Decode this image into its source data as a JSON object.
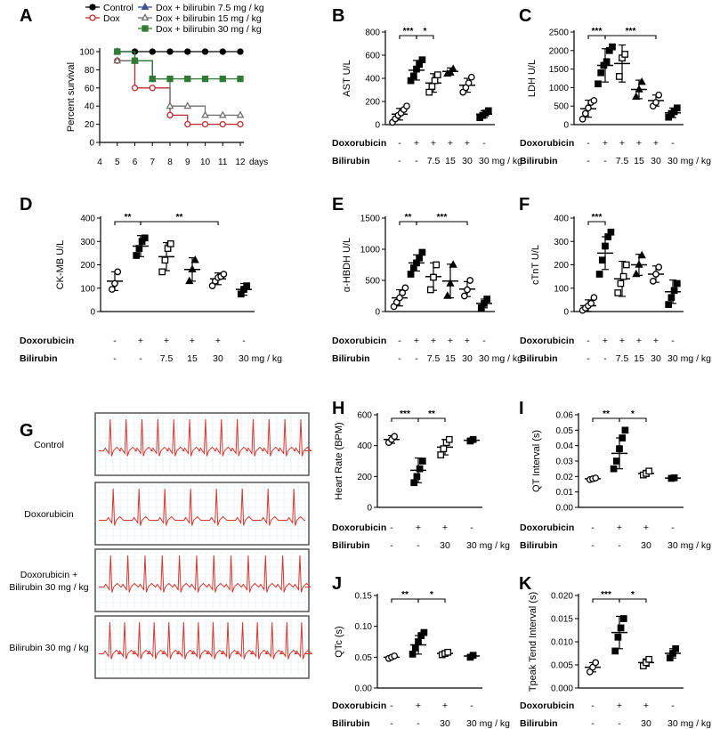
{
  "panels": {
    "A": {
      "label": "A",
      "type": "line",
      "ylabel": "Percent survival",
      "xunit": "days",
      "xlim": [
        4,
        12
      ],
      "ylim": [
        0,
        100
      ],
      "xticks": [
        4,
        5,
        6,
        7,
        8,
        9,
        10,
        11,
        12
      ],
      "yticks": [
        0,
        20,
        40,
        60,
        80,
        100
      ],
      "series": [
        {
          "name": "Control",
          "color": "#000000",
          "marker": "circle",
          "fill": true,
          "x": [
            5,
            6,
            7,
            8,
            9,
            10,
            11,
            12
          ],
          "y": [
            100,
            100,
            100,
            100,
            100,
            100,
            100,
            100
          ]
        },
        {
          "name": "Dox",
          "color": "#c0282d",
          "marker": "circle",
          "fill": false,
          "x": [
            5,
            6,
            7,
            8,
            9,
            10,
            11,
            12
          ],
          "y": [
            90,
            60,
            60,
            30,
            20,
            20,
            20,
            20
          ]
        },
        {
          "name": "Dox + bilirubin 7.5 mg / kg",
          "color": "#3d4f9a",
          "marker": "triangle",
          "fill": true,
          "x": [
            5,
            6,
            7
          ],
          "y": [
            100,
            90,
            70
          ]
        },
        {
          "name": "Dox + bilirubin 15 mg / kg",
          "color": "#707070",
          "marker": "triangle",
          "fill": false,
          "x": [
            5,
            6,
            7,
            8,
            9,
            10,
            11,
            12
          ],
          "y": [
            90,
            90,
            70,
            40,
            40,
            30,
            30,
            30
          ]
        },
        {
          "name": "Dox + bilirubin 30 mg / kg",
          "color": "#2f7a34",
          "marker": "square",
          "fill": true,
          "x": [
            5,
            6,
            7,
            8,
            9,
            10,
            11,
            12
          ],
          "y": [
            100,
            90,
            70,
            70,
            70,
            70,
            70,
            70
          ]
        }
      ]
    },
    "B": {
      "label": "B",
      "ylabel": "AST U/L",
      "ylim": [
        0,
        800
      ],
      "yticks": [
        0,
        200,
        400,
        600,
        800
      ],
      "groups": [
        {
          "mean": 90,
          "sd": 50,
          "marker": "circle-open",
          "points": [
            20,
            50,
            80,
            100,
            130,
            160
          ]
        },
        {
          "mean": 470,
          "sd": 85,
          "marker": "square-filled",
          "points": [
            380,
            420,
            480,
            520,
            560
          ]
        },
        {
          "mean": 360,
          "sd": 80,
          "marker": "square-open",
          "points": [
            280,
            330,
            380,
            430
          ]
        },
        {
          "mean": 460,
          "sd": 30,
          "marker": "triangle-filled",
          "points": [
            440,
            450,
            480
          ]
        },
        {
          "mean": 340,
          "sd": 60,
          "marker": "circle-open",
          "points": [
            280,
            320,
            360,
            410
          ]
        },
        {
          "mean": 90,
          "sd": 30,
          "marker": "square-filled",
          "points": [
            60,
            80,
            100,
            120
          ]
        }
      ],
      "brackets": [
        {
          "from": 0,
          "to": 1,
          "label": "***"
        },
        {
          "from": 1,
          "to": 2,
          "label": "*"
        }
      ]
    },
    "C": {
      "label": "C",
      "ylabel": "LDH U/L",
      "ylim": [
        0,
        2500
      ],
      "yticks": [
        0,
        500,
        1000,
        1500,
        2000,
        2500
      ],
      "groups": [
        {
          "mean": 430,
          "sd": 230,
          "marker": "circle-open",
          "points": [
            150,
            300,
            450,
            600,
            650
          ]
        },
        {
          "mean": 1600,
          "sd": 450,
          "marker": "square-filled",
          "points": [
            1100,
            1400,
            1600,
            1700,
            2000,
            2100
          ]
        },
        {
          "mean": 1650,
          "sd": 500,
          "marker": "square-open",
          "points": [
            1300,
            1800,
            1900
          ]
        },
        {
          "mean": 950,
          "sd": 250,
          "marker": "triangle-filled",
          "points": [
            750,
            950,
            1150
          ]
        },
        {
          "mean": 650,
          "sd": 150,
          "marker": "circle-open",
          "points": [
            500,
            600,
            800
          ]
        },
        {
          "mean": 320,
          "sd": 130,
          "marker": "square-filled",
          "points": [
            200,
            300,
            350,
            450
          ]
        }
      ],
      "brackets": [
        {
          "from": 0,
          "to": 1,
          "label": "***"
        },
        {
          "from": 1,
          "to": 4,
          "label": "***"
        }
      ]
    },
    "D": {
      "label": "D",
      "ylabel": "CK-MB U/L",
      "ylim": [
        0,
        400
      ],
      "yticks": [
        0,
        100,
        200,
        300,
        400
      ],
      "groups": [
        {
          "mean": 130,
          "sd": 40,
          "marker": "circle-open",
          "points": [
            95,
            120,
            170
          ]
        },
        {
          "mean": 280,
          "sd": 45,
          "marker": "square-filled",
          "points": [
            240,
            270,
            300,
            315
          ]
        },
        {
          "mean": 235,
          "sd": 60,
          "marker": "square-open",
          "points": [
            170,
            220,
            270,
            290
          ]
        },
        {
          "mean": 180,
          "sd": 50,
          "marker": "triangle-filled",
          "points": [
            130,
            180,
            220
          ]
        },
        {
          "mean": 140,
          "sd": 25,
          "marker": "circle-open",
          "points": [
            110,
            130,
            145,
            150,
            160
          ]
        },
        {
          "mean": 95,
          "sd": 25,
          "marker": "square-filled",
          "points": [
            75,
            95,
            110
          ]
        }
      ],
      "brackets": [
        {
          "from": 0,
          "to": 1,
          "label": "**"
        },
        {
          "from": 1,
          "to": 4,
          "label": "**"
        }
      ]
    },
    "E": {
      "label": "E",
      "ylabel": "α-HBDH U/L",
      "ylim": [
        0,
        1500
      ],
      "yticks": [
        0,
        500,
        1000,
        1500
      ],
      "groups": [
        {
          "mean": 220,
          "sd": 130,
          "marker": "circle-open",
          "points": [
            80,
            150,
            220,
            300,
            380
          ]
        },
        {
          "mean": 780,
          "sd": 130,
          "marker": "square-filled",
          "points": [
            600,
            700,
            780,
            860,
            950
          ]
        },
        {
          "mean": 560,
          "sd": 220,
          "marker": "square-open",
          "points": [
            350,
            550,
            750
          ]
        },
        {
          "mean": 490,
          "sd": 270,
          "marker": "triangle-filled",
          "points": [
            250,
            450,
            750
          ]
        },
        {
          "mean": 360,
          "sd": 120,
          "marker": "circle-open",
          "points": [
            250,
            350,
            500
          ]
        },
        {
          "mean": 130,
          "sd": 70,
          "marker": "square-filled",
          "points": [
            60,
            130,
            200
          ]
        }
      ],
      "brackets": [
        {
          "from": 0,
          "to": 1,
          "label": "**"
        },
        {
          "from": 1,
          "to": 4,
          "label": "***"
        }
      ]
    },
    "F": {
      "label": "F",
      "ylabel": "cTnT U/L",
      "ylim": [
        0,
        400
      ],
      "yticks": [
        0,
        100,
        200,
        300,
        400
      ],
      "groups": [
        {
          "mean": 25,
          "sd": 25,
          "marker": "circle-open",
          "points": [
            5,
            15,
            25,
            35,
            60
          ]
        },
        {
          "mean": 250,
          "sd": 70,
          "marker": "square-filled",
          "points": [
            160,
            220,
            280,
            320,
            340
          ]
        },
        {
          "mean": 140,
          "sd": 75,
          "marker": "square-open",
          "points": [
            80,
            120,
            150,
            200
          ]
        },
        {
          "mean": 200,
          "sd": 45,
          "marker": "triangle-filled",
          "points": [
            160,
            200,
            240
          ]
        },
        {
          "mean": 160,
          "sd": 35,
          "marker": "circle-open",
          "points": [
            130,
            160,
            190
          ]
        },
        {
          "mean": 85,
          "sd": 50,
          "marker": "square-filled",
          "points": [
            30,
            60,
            90,
            120
          ]
        }
      ],
      "brackets": [
        {
          "from": 0,
          "to": 1,
          "label": "***"
        }
      ]
    },
    "H": {
      "label": "H",
      "ylabel": "Heart Rate (BPM)",
      "ylim": [
        0,
        600
      ],
      "yticks": [
        0,
        200,
        400,
        600
      ],
      "groups": [
        {
          "mean": 440,
          "sd": 25,
          "marker": "circle-open",
          "points": [
            420,
            440,
            460
          ]
        },
        {
          "mean": 240,
          "sd": 80,
          "marker": "square-filled",
          "points": [
            160,
            200,
            250,
            300
          ]
        },
        {
          "mean": 390,
          "sd": 50,
          "marker": "square-open",
          "points": [
            340,
            380,
            420,
            440
          ]
        },
        {
          "mean": 435,
          "sd": 10,
          "marker": "square-filled",
          "points": [
            430,
            440
          ]
        }
      ],
      "brackets": [
        {
          "from": 0,
          "to": 1,
          "label": "***"
        },
        {
          "from": 1,
          "to": 2,
          "label": "**"
        }
      ]
    },
    "I": {
      "label": "I",
      "ylabel": "QT Interval (s)",
      "ylim": [
        0,
        0.06
      ],
      "yticks": [
        "0.00",
        "0.01",
        "0.02",
        "0.03",
        "0.04",
        "0.05",
        "0.06"
      ],
      "groups": [
        {
          "mean": 0.0185,
          "sd": 0.0007,
          "marker": "circle-open",
          "points": [
            0.018,
            0.0185,
            0.019
          ]
        },
        {
          "mean": 0.035,
          "sd": 0.01,
          "marker": "square-filled",
          "points": [
            0.025,
            0.03,
            0.038,
            0.045,
            0.05
          ]
        },
        {
          "mean": 0.022,
          "sd": 0.002,
          "marker": "square-open",
          "points": [
            0.021,
            0.022,
            0.0235
          ]
        },
        {
          "mean": 0.019,
          "sd": 0.0005,
          "marker": "square-filled",
          "points": [
            0.0188,
            0.0192
          ]
        }
      ],
      "brackets": [
        {
          "from": 0,
          "to": 1,
          "label": "**"
        },
        {
          "from": 1,
          "to": 2,
          "label": "*"
        }
      ]
    },
    "J": {
      "label": "J",
      "ylabel": "QTc (s)",
      "ylim": [
        0,
        0.15
      ],
      "yticks": [
        "0.00",
        "0.05",
        "0.10",
        "0.15"
      ],
      "groups": [
        {
          "mean": 0.05,
          "sd": 0.002,
          "marker": "circle-open",
          "points": [
            0.048,
            0.05,
            0.052
          ]
        },
        {
          "mean": 0.07,
          "sd": 0.015,
          "marker": "square-filled",
          "points": [
            0.055,
            0.065,
            0.075,
            0.085,
            0.09
          ]
        },
        {
          "mean": 0.056,
          "sd": 0.002,
          "marker": "square-open",
          "points": [
            0.054,
            0.056,
            0.058
          ]
        },
        {
          "mean": 0.052,
          "sd": 0.002,
          "marker": "square-filled",
          "points": [
            0.05,
            0.053
          ]
        }
      ],
      "brackets": [
        {
          "from": 0,
          "to": 1,
          "label": "**"
        },
        {
          "from": 1,
          "to": 2,
          "label": "*"
        }
      ]
    },
    "K": {
      "label": "K",
      "ylabel": "Tpeak Tend Interval (s)",
      "ylim": [
        0,
        0.02
      ],
      "yticks": [
        "0.000",
        "0.005",
        "0.010",
        "0.015",
        "0.020"
      ],
      "groups": [
        {
          "mean": 0.0045,
          "sd": 0.001,
          "marker": "circle-open",
          "points": [
            0.0035,
            0.0045,
            0.0055
          ]
        },
        {
          "mean": 0.012,
          "sd": 0.0035,
          "marker": "square-filled",
          "points": [
            0.008,
            0.011,
            0.013,
            0.015
          ]
        },
        {
          "mean": 0.0055,
          "sd": 0.0008,
          "marker": "square-open",
          "points": [
            0.0048,
            0.0055,
            0.0062
          ]
        },
        {
          "mean": 0.0075,
          "sd": 0.001,
          "marker": "square-filled",
          "points": [
            0.0065,
            0.0075,
            0.0085
          ]
        }
      ],
      "brackets": [
        {
          "from": 0,
          "to": 1,
          "label": "***"
        },
        {
          "from": 1,
          "to": 2,
          "label": "*"
        }
      ]
    }
  },
  "condition_rows": {
    "doxorubicin_label": "Doxorubicin",
    "bilirubin_label": "Bilirubin",
    "six": {
      "dox": [
        "-",
        "+",
        "+",
        "+",
        "+",
        "-"
      ],
      "bili": [
        "-",
        "-",
        "7.5",
        "15",
        "30",
        "30 mg / kg"
      ]
    },
    "four": {
      "dox": [
        "-",
        "+",
        "+",
        "-"
      ],
      "bili": [
        "-",
        "-",
        "30",
        "30 mg / kg"
      ]
    }
  },
  "panel_g": {
    "label": "G",
    "traces": [
      {
        "label": "Control",
        "rate": 13
      },
      {
        "label": "Doxorubicin",
        "rate": 8
      },
      {
        "label": "Doxorubicin + Bilirubin 30 mg / kg",
        "rate": 12
      },
      {
        "label": "Bilirubin 30 mg / kg",
        "rate": 14
      }
    ]
  },
  "colors": {
    "ecg_line": "#d9362f",
    "ecg_grid": "#dbe9ee",
    "frame": "#555555"
  }
}
